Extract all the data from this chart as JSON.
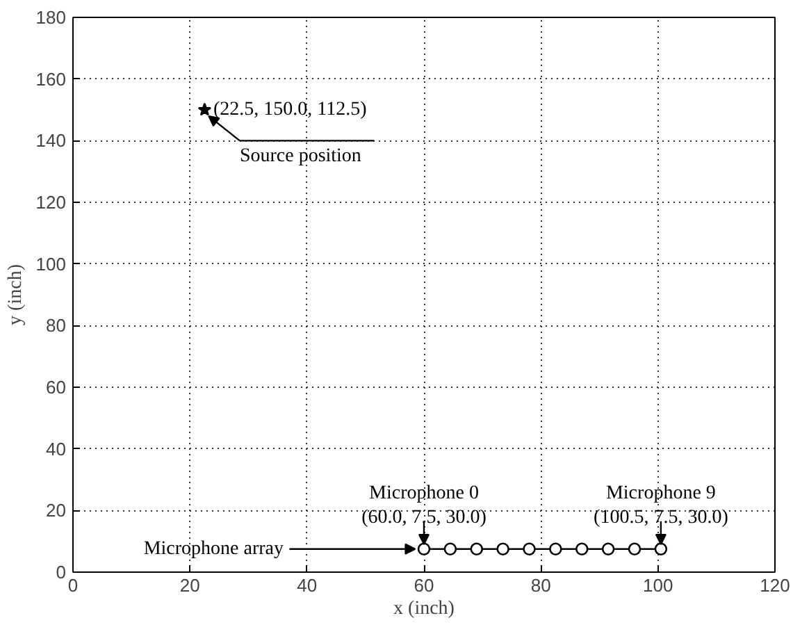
{
  "chart_data": {
    "type": "scatter",
    "xlabel": "x (inch)",
    "ylabel": "y (inch)",
    "xlim": [
      0,
      120
    ],
    "ylim": [
      0,
      180
    ],
    "xticks": [
      0,
      20,
      40,
      60,
      80,
      100,
      120
    ],
    "yticks": [
      0,
      20,
      40,
      60,
      80,
      100,
      120,
      140,
      160,
      180
    ],
    "grid": true,
    "series": [
      {
        "marker": "star",
        "color": "#000000",
        "x": [
          22.5
        ],
        "values": [
          150.0
        ]
      },
      {
        "type": "line",
        "marker": "circle",
        "color": "#000000",
        "x": [
          60.0,
          64.5,
          69.0,
          73.5,
          78.0,
          82.5,
          87.0,
          91.5,
          96.0,
          100.5
        ],
        "values": [
          7.5,
          7.5,
          7.5,
          7.5,
          7.5,
          7.5,
          7.5,
          7.5,
          7.5,
          7.5
        ]
      }
    ],
    "annotations": [
      {
        "text": "(22.5, 150.0, 112.5)",
        "x": 22.5,
        "y": 150.0
      },
      {
        "text": "Source position",
        "x": 22.5,
        "y": 150.0
      },
      {
        "text": "Microphone 0",
        "x": 60.0,
        "y": 7.5
      },
      {
        "text": "(60.0, 7.5, 30.0)",
        "x": 60.0,
        "y": 7.5
      },
      {
        "text": "Microphone 9",
        "x": 100.5,
        "y": 7.5
      },
      {
        "text": "(100.5, 7.5, 30.0)",
        "x": 100.5,
        "y": 7.5
      },
      {
        "text": "Microphone array",
        "x": 60.0,
        "y": 7.5
      }
    ]
  }
}
